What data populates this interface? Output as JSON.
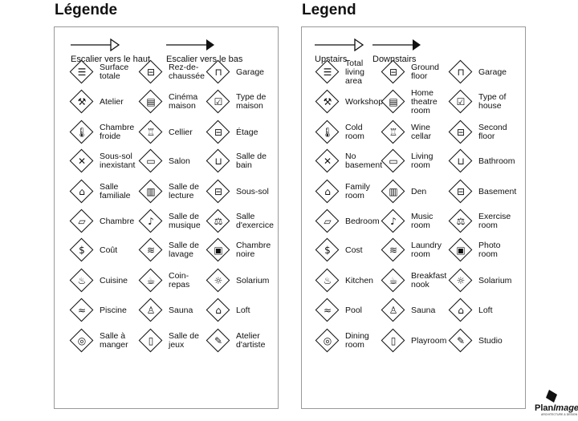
{
  "left": {
    "title": "Légende",
    "stairs_up": "Escalier vers le haut",
    "stairs_down": "Escalier vers le bas",
    "items": [
      [
        "Surface\ntotale",
        "Rez-de-\nchaussée",
        "Garage"
      ],
      [
        "Atelier",
        "Cinéma\nmaison",
        "Type de\nmaison"
      ],
      [
        "Chambre\nfroide",
        "Cellier",
        "Étage"
      ],
      [
        "Sous-sol\ninexistant",
        "Salon",
        "Salle de\nbain"
      ],
      [
        "Salle\nfamiliale",
        "Salle de\nlecture",
        "Sous-sol"
      ],
      [
        "Chambre",
        "Salle de\nmusique",
        "Salle\nd'exercice"
      ],
      [
        "Coût",
        "Salle de\nlavage",
        "Chambre\nnoire"
      ],
      [
        "Cuisine",
        "Coin-\nrepas",
        "Solarium"
      ],
      [
        "Piscine",
        "Sauna",
        "Loft"
      ],
      [
        "Salle à\nmanger",
        "Salle de\njeux",
        "Atelier\nd'artiste"
      ]
    ]
  },
  "right": {
    "title": "Legend",
    "stairs_up": "Upstairs",
    "stairs_down": "Downstairs",
    "items": [
      [
        "Total\nliving\narea",
        "Ground\nfloor",
        "Garage"
      ],
      [
        "Workshop",
        "Home\ntheatre\nroom",
        "Type of\nhouse"
      ],
      [
        "Cold\nroom",
        "Wine\ncellar",
        "Second\nfloor"
      ],
      [
        "No\nbasement",
        "Living\nroom",
        "Bathroom"
      ],
      [
        "Family\nroom",
        "Den",
        "Basement"
      ],
      [
        "Bedroom",
        "Music\nroom",
        "Exercise\nroom"
      ],
      [
        "Cost",
        "Laundry\nroom",
        "Photo\nroom"
      ],
      [
        "Kitchen",
        "Breakfast\nnook",
        "Solarium"
      ],
      [
        "Pool",
        "Sauna",
        "Loft"
      ],
      [
        "Dining\nroom",
        "Playroom",
        "Studio"
      ]
    ]
  },
  "icons": [
    [
      "total-area-icon",
      "ground-floor-icon",
      "garage-icon"
    ],
    [
      "hammer-icon",
      "home-theatre-icon",
      "house-type-icon"
    ],
    [
      "thermometer-icon",
      "wine-bottle-icon",
      "second-floor-icon"
    ],
    [
      "no-basement-icon",
      "sofa-icon",
      "sink-icon"
    ],
    [
      "family-room-icon",
      "book-icon",
      "basement-icon"
    ],
    [
      "bed-icon",
      "music-note-icon",
      "dumbbell-icon"
    ],
    [
      "dollar-icon",
      "laundry-icon",
      "camera-icon"
    ],
    [
      "pot-icon",
      "coffee-cup-icon",
      "sun-icon"
    ],
    [
      "pool-icon",
      "sauna-icon",
      "loft-icon"
    ],
    [
      "plate-icon",
      "game-icon",
      "palette-icon"
    ]
  ],
  "icon_glyphs": [
    [
      "☰",
      "⊟",
      "⊓"
    ],
    [
      "⚒",
      "▤",
      "☑"
    ],
    [
      "🌡",
      "♖",
      "⊟"
    ],
    [
      "✕",
      "▭",
      "⊔"
    ],
    [
      "⌂",
      "▥",
      "⊟"
    ],
    [
      "▱",
      "♪",
      "⚖"
    ],
    [
      "$",
      "≋",
      "▣"
    ],
    [
      "♨",
      "☕",
      "☼"
    ],
    [
      "≈",
      "♙",
      "⌂"
    ],
    [
      "◎",
      "▯",
      "✎"
    ]
  ],
  "logo": {
    "name": "PlanImage",
    "tagline": "ARCHITECTURE & DESIGN"
  }
}
